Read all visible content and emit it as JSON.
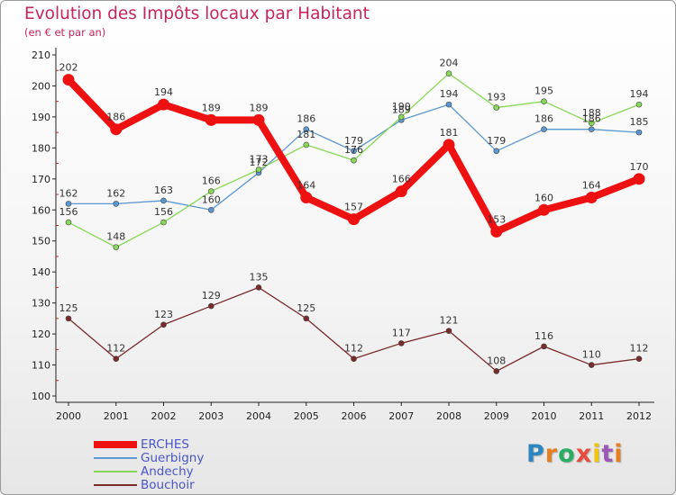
{
  "title": "Evolution des Impôts locaux par Habitant",
  "subtitle": "(en € et par an)",
  "logo": {
    "text": "Proxiti",
    "colors": [
      "#2e86c1",
      "#e67e22",
      "#27ae60",
      "#e74c3c",
      "#f1c40f",
      "#9b59b6",
      "#e67e22"
    ]
  },
  "chart_data": {
    "type": "line",
    "title": "Evolution des Impôts locaux par Habitant",
    "subtitle": "(en € et par an)",
    "xlabel": "",
    "ylabel": "",
    "ylim": [
      100,
      210
    ],
    "yticks": [
      100,
      110,
      120,
      130,
      140,
      150,
      160,
      170,
      180,
      190,
      200,
      210
    ],
    "grid": false,
    "legend_position": "bottom-left",
    "x": [
      "2000",
      "2001",
      "2002",
      "2003",
      "2004",
      "2005",
      "2006",
      "2007",
      "2008",
      "2009",
      "2010",
      "2011",
      "2012"
    ],
    "series": [
      {
        "name": "ERCHES",
        "color": "#ee1111",
        "width": 8,
        "values": [
          202,
          186,
          194,
          189,
          189,
          164,
          157,
          166,
          181,
          153,
          160,
          164,
          170
        ]
      },
      {
        "name": "Guerbigny",
        "color": "#5b97d0",
        "width": 1.3,
        "values": [
          162,
          162,
          163,
          160,
          172,
          186,
          179,
          189,
          194,
          179,
          186,
          186,
          185
        ]
      },
      {
        "name": "Andechy",
        "color": "#88d858",
        "width": 1.3,
        "values": [
          156,
          148,
          156,
          166,
          173,
          181,
          176,
          190,
          204,
          193,
          195,
          188,
          194
        ]
      },
      {
        "name": "Bouchoir",
        "color": "#7a2a2a",
        "width": 1.3,
        "values": [
          125,
          112,
          123,
          129,
          135,
          125,
          112,
          117,
          121,
          108,
          116,
          110,
          112
        ]
      }
    ]
  }
}
